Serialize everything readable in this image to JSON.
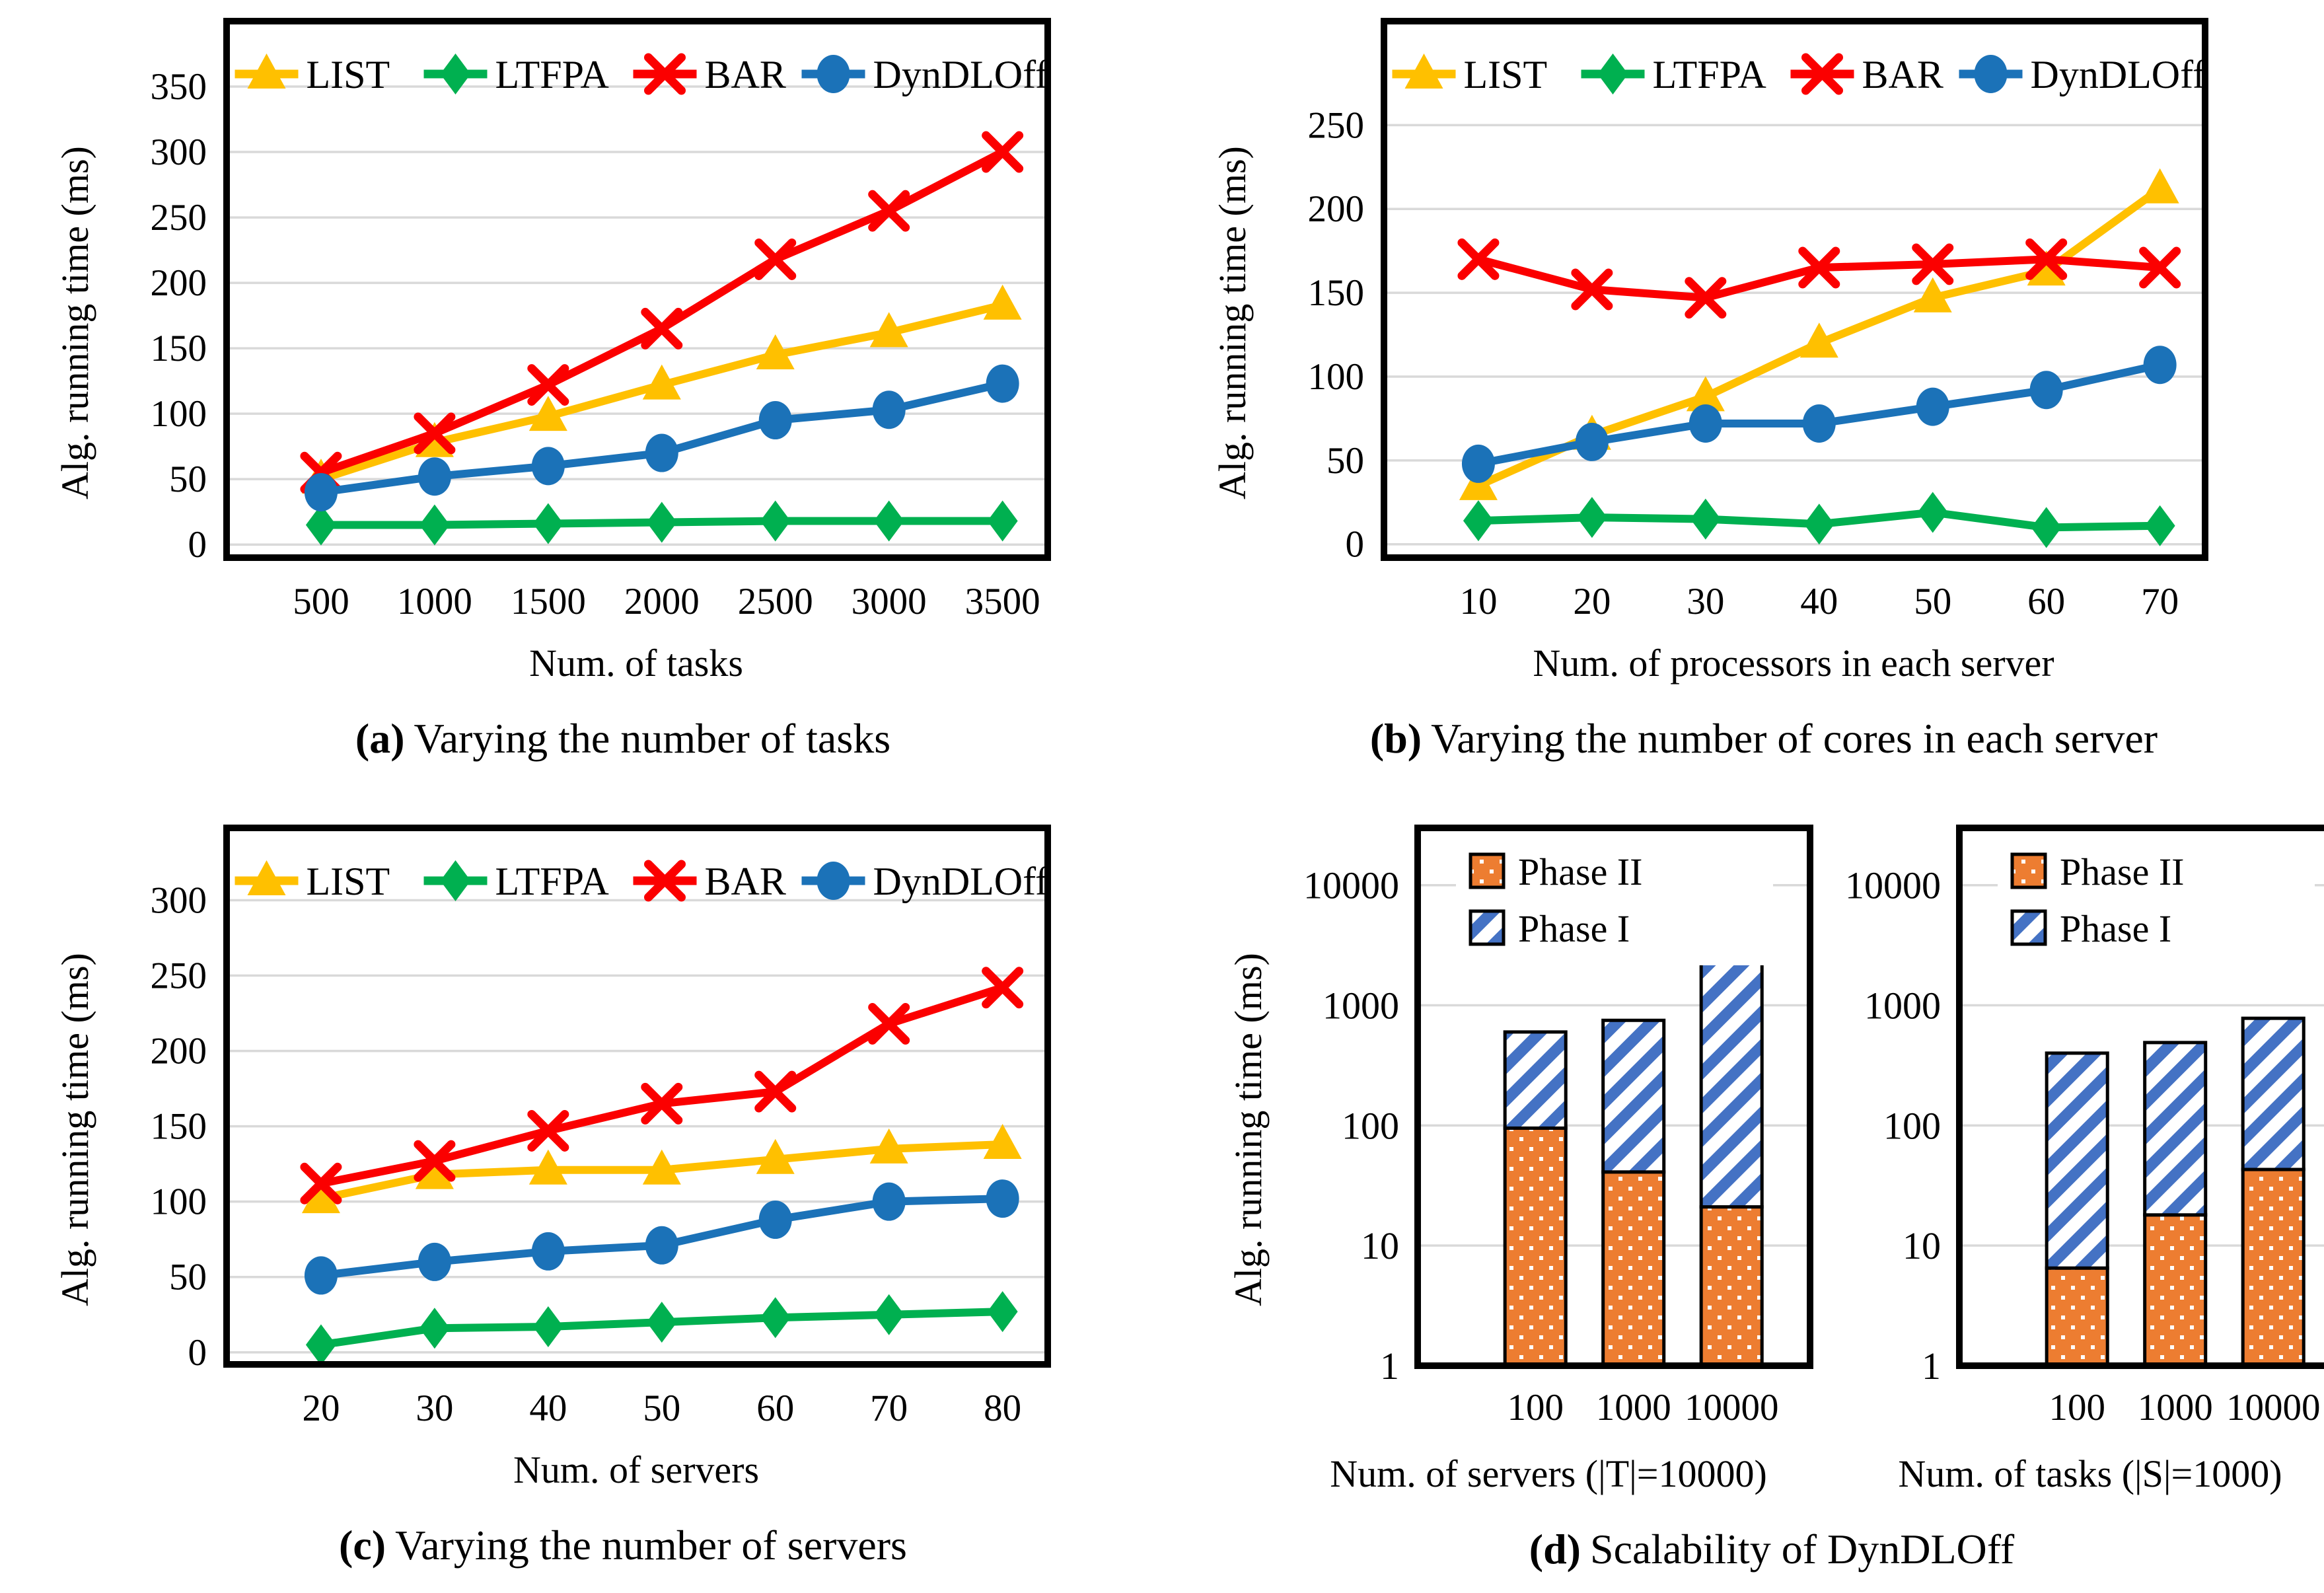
{
  "figure": {
    "background": "#ffffff",
    "ylabel_shared": "Alg. running time (ms)"
  },
  "colors": {
    "LIST": "#FFC000",
    "LTFPA": "#00B050",
    "BAR": "#FB0000",
    "DynDLOff": "#1B72B8",
    "phase2_fill": "#ED7D31",
    "phase1_stripe": "#4472C4",
    "gridline": "#D9D9D9",
    "axis": "#000000"
  },
  "caption_d": {
    "label": "(d)",
    "text": "Scalability of DynDLOff"
  },
  "chart_data": [
    {
      "id": "a",
      "type": "line",
      "xlabel": "Num. of tasks",
      "ylabel": "Alg. running time (ms)",
      "caption_label": "(a)",
      "caption_text": "Varying the number of tasks",
      "x": [
        500,
        1000,
        1500,
        2000,
        2500,
        3000,
        3500
      ],
      "ylim": [
        -10,
        400
      ],
      "yticks": [
        0,
        50,
        100,
        150,
        200,
        250,
        300,
        350
      ],
      "grid": true,
      "legend_position": "top-center-inside",
      "series": [
        {
          "name": "LIST",
          "marker": "triangle",
          "color": "#FFC000",
          "values": [
            50,
            78,
            98,
            122,
            145,
            162,
            183
          ]
        },
        {
          "name": "LTFPA",
          "marker": "diamond",
          "color": "#00B050",
          "values": [
            15,
            15,
            16,
            17,
            18,
            18,
            18
          ]
        },
        {
          "name": "BAR",
          "marker": "x",
          "color": "#FB0000",
          "values": [
            55,
            85,
            122,
            165,
            218,
            255,
            300
          ]
        },
        {
          "name": "DynDLOff",
          "marker": "circle",
          "color": "#1B72B8",
          "values": [
            40,
            52,
            60,
            70,
            95,
            103,
            123
          ]
        }
      ]
    },
    {
      "id": "b",
      "type": "line",
      "xlabel": "Num. of processors in each server",
      "ylabel": "Alg. running time (ms)",
      "caption_label": "(b)",
      "caption_text": "Varying the number of cores in each server",
      "x": [
        10,
        20,
        30,
        40,
        50,
        60,
        70
      ],
      "ylim": [
        -8,
        312
      ],
      "yticks": [
        0,
        50,
        100,
        150,
        200,
        250
      ],
      "grid": true,
      "legend_position": "top-center-inside",
      "series": [
        {
          "name": "LIST",
          "marker": "triangle",
          "color": "#FFC000",
          "values": [
            35,
            65,
            88,
            120,
            147,
            163,
            212
          ]
        },
        {
          "name": "LTFPA",
          "marker": "diamond",
          "color": "#00B050",
          "values": [
            14,
            16,
            15,
            12,
            19,
            10,
            11
          ]
        },
        {
          "name": "BAR",
          "marker": "x",
          "color": "#FB0000",
          "values": [
            170,
            152,
            147,
            165,
            167,
            170,
            165
          ]
        },
        {
          "name": "DynDLOff",
          "marker": "circle",
          "color": "#1B72B8",
          "values": [
            48,
            61,
            72,
            72,
            82,
            92,
            107
          ]
        }
      ]
    },
    {
      "id": "c",
      "type": "line",
      "xlabel": "Num. of servers",
      "ylabel": "Alg. running time (ms)",
      "caption_label": "(c)",
      "caption_text": "Varying the number of servers",
      "x": [
        20,
        30,
        40,
        50,
        60,
        70,
        80
      ],
      "ylim": [
        -8,
        348
      ],
      "yticks": [
        0,
        50,
        100,
        150,
        200,
        250,
        300
      ],
      "grid": true,
      "legend_position": "top-center-inside",
      "series": [
        {
          "name": "LIST",
          "marker": "triangle",
          "color": "#FFC000",
          "values": [
            102,
            118,
            121,
            121,
            128,
            135,
            138
          ]
        },
        {
          "name": "LTFPA",
          "marker": "diamond",
          "color": "#00B050",
          "values": [
            5,
            16,
            17,
            20,
            23,
            25,
            27
          ]
        },
        {
          "name": "BAR",
          "marker": "x",
          "color": "#FB0000",
          "values": [
            112,
            127,
            147,
            165,
            173,
            218,
            242
          ]
        },
        {
          "name": "DynDLOff",
          "marker": "circle",
          "color": "#1B72B8",
          "values": [
            51,
            60,
            67,
            71,
            88,
            100,
            102
          ]
        }
      ]
    },
    {
      "id": "d1",
      "type": "stacked-bar-log",
      "xlabel": "Num. of servers (|T|=10000)",
      "ylabel": "Alg. running time (ms)",
      "categories": [
        "100",
        "1000",
        "10000"
      ],
      "ylim": [
        1,
        30000
      ],
      "yticks": [
        1,
        10,
        100,
        1000,
        10000
      ],
      "grid": true,
      "legend": [
        {
          "name": "Phase II",
          "pattern": "dots"
        },
        {
          "name": "Phase I",
          "pattern": "stripes"
        }
      ],
      "phase2_top": [
        95,
        41,
        21
      ],
      "bar_total": [
        600,
        750,
        4500
      ]
    },
    {
      "id": "d2",
      "type": "stacked-bar-log",
      "xlabel": "Num. of tasks (|S|=1000)",
      "ylabel": "",
      "categories": [
        "100",
        "1000",
        "10000"
      ],
      "ylim": [
        1,
        30000
      ],
      "yticks": [
        1,
        10,
        100,
        1000,
        10000
      ],
      "grid": true,
      "legend": [
        {
          "name": "Phase II",
          "pattern": "dots"
        },
        {
          "name": "Phase I",
          "pattern": "stripes"
        }
      ],
      "phase2_top": [
        6.5,
        18,
        43
      ],
      "bar_total": [
        400,
        490,
        780
      ]
    }
  ]
}
